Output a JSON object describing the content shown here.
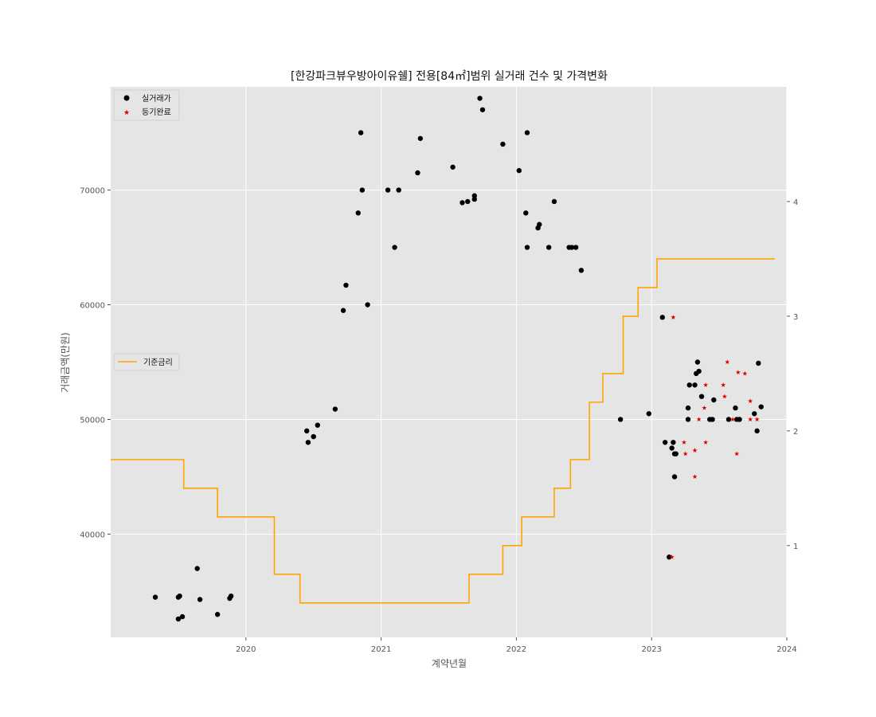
{
  "chart_data": {
    "type": "scatter",
    "title": "[한강파크뷰우방아이유쉘] 전용[84㎡]범위 실거래 건수 및 가격변화",
    "xlabel": "계약년월",
    "ylabel": "거래금액(만원)",
    "xlim": [
      2019.0,
      2024.0
    ],
    "ylim": [
      31000,
      79000
    ],
    "y2lim": [
      0.2,
      5.0
    ],
    "grid": true,
    "x_ticks": [
      2020,
      2021,
      2022,
      2023,
      2024
    ],
    "x_tick_labels": [
      "2020",
      "2021",
      "2022",
      "2023",
      "2024"
    ],
    "y_ticks": [
      40000,
      50000,
      60000,
      70000
    ],
    "y_tick_labels": [
      "40000",
      "50000",
      "60000",
      "70000"
    ],
    "y2_ticks": [
      1,
      2,
      3,
      4
    ],
    "y2_tick_labels": [
      "1",
      "2",
      "3",
      "4"
    ],
    "legend_top": {
      "placement": "top-left",
      "entries": [
        "실거래가",
        "등기완료"
      ]
    },
    "legend_mid": {
      "placement": "center-left",
      "entries": [
        "기준금리"
      ]
    },
    "series": [
      {
        "name": "실거래가",
        "kind": "scatter",
        "marker": "circle",
        "color": "#000000",
        "points": [
          [
            2019.33,
            34500
          ],
          [
            2019.5,
            34500
          ],
          [
            2019.51,
            34600
          ],
          [
            2019.5,
            32600
          ],
          [
            2019.53,
            32800
          ],
          [
            2019.64,
            37000
          ],
          [
            2019.66,
            34300
          ],
          [
            2019.79,
            33000
          ],
          [
            2019.88,
            34400
          ],
          [
            2019.89,
            34600
          ],
          [
            2020.45,
            49000
          ],
          [
            2020.46,
            48000
          ],
          [
            2020.5,
            48500
          ],
          [
            2020.53,
            49500
          ],
          [
            2020.66,
            50900
          ],
          [
            2020.72,
            59500
          ],
          [
            2020.74,
            61700
          ],
          [
            2020.83,
            68000
          ],
          [
            2020.85,
            75000
          ],
          [
            2020.86,
            70000
          ],
          [
            2020.9,
            60000
          ],
          [
            2021.05,
            70000
          ],
          [
            2021.1,
            65000
          ],
          [
            2021.13,
            70000
          ],
          [
            2021.27,
            71500
          ],
          [
            2021.29,
            74500
          ],
          [
            2021.53,
            72000
          ],
          [
            2021.6,
            68900
          ],
          [
            2021.64,
            69000
          ],
          [
            2021.69,
            69500
          ],
          [
            2021.69,
            69200
          ],
          [
            2021.73,
            78000
          ],
          [
            2021.75,
            77000
          ],
          [
            2021.9,
            74000
          ],
          [
            2022.02,
            71700
          ],
          [
            2022.07,
            68000
          ],
          [
            2022.08,
            65000
          ],
          [
            2022.08,
            75000
          ],
          [
            2022.16,
            66700
          ],
          [
            2022.17,
            67000
          ],
          [
            2022.24,
            65000
          ],
          [
            2022.28,
            69000
          ],
          [
            2022.39,
            65000
          ],
          [
            2022.41,
            65000
          ],
          [
            2022.44,
            65000
          ],
          [
            2022.48,
            63000
          ],
          [
            2022.77,
            50000
          ],
          [
            2022.98,
            50500
          ],
          [
            2023.08,
            58900
          ],
          [
            2023.1,
            48000
          ],
          [
            2023.13,
            38000
          ],
          [
            2023.15,
            47500
          ],
          [
            2023.16,
            48000
          ],
          [
            2023.17,
            47000
          ],
          [
            2023.17,
            45000
          ],
          [
            2023.18,
            47000
          ],
          [
            2023.27,
            50000
          ],
          [
            2023.27,
            51000
          ],
          [
            2023.28,
            53000
          ],
          [
            2023.32,
            53000
          ],
          [
            2023.33,
            54000
          ],
          [
            2023.34,
            55000
          ],
          [
            2023.35,
            54200
          ],
          [
            2023.37,
            52000
          ],
          [
            2023.43,
            50000
          ],
          [
            2023.45,
            50000
          ],
          [
            2023.46,
            51700
          ],
          [
            2023.57,
            50000
          ],
          [
            2023.62,
            51000
          ],
          [
            2023.63,
            50000
          ],
          [
            2023.65,
            50000
          ],
          [
            2023.76,
            50500
          ],
          [
            2023.78,
            49000
          ],
          [
            2023.79,
            54900
          ],
          [
            2023.81,
            51100
          ]
        ]
      },
      {
        "name": "등기완료",
        "kind": "scatter",
        "marker": "star",
        "color": "#dd0000",
        "points": [
          [
            2023.15,
            38000
          ],
          [
            2023.16,
            58900
          ],
          [
            2023.24,
            48000
          ],
          [
            2023.25,
            47000
          ],
          [
            2023.32,
            47300
          ],
          [
            2023.32,
            45000
          ],
          [
            2023.35,
            50000
          ],
          [
            2023.39,
            51000
          ],
          [
            2023.4,
            53000
          ],
          [
            2023.4,
            48000
          ],
          [
            2023.53,
            53000
          ],
          [
            2023.54,
            52000
          ],
          [
            2023.56,
            55000
          ],
          [
            2023.6,
            50000
          ],
          [
            2023.63,
            47000
          ],
          [
            2023.64,
            54100
          ],
          [
            2023.69,
            54000
          ],
          [
            2023.73,
            51600
          ],
          [
            2023.73,
            50000
          ],
          [
            2023.78,
            50000
          ]
        ]
      },
      {
        "name": "기준금리",
        "kind": "step",
        "axis": "right",
        "color": "#ffa500",
        "points": [
          [
            2019.0,
            1.75
          ],
          [
            2019.54,
            1.5
          ],
          [
            2019.79,
            1.25
          ],
          [
            2020.21,
            0.75
          ],
          [
            2020.4,
            0.5
          ],
          [
            2021.65,
            0.75
          ],
          [
            2021.9,
            1.0
          ],
          [
            2022.04,
            1.25
          ],
          [
            2022.28,
            1.5
          ],
          [
            2022.4,
            1.75
          ],
          [
            2022.54,
            2.25
          ],
          [
            2022.64,
            2.5
          ],
          [
            2022.79,
            3.0
          ],
          [
            2022.9,
            3.25
          ],
          [
            2023.04,
            3.5
          ],
          [
            2023.91,
            3.5
          ]
        ]
      }
    ]
  }
}
